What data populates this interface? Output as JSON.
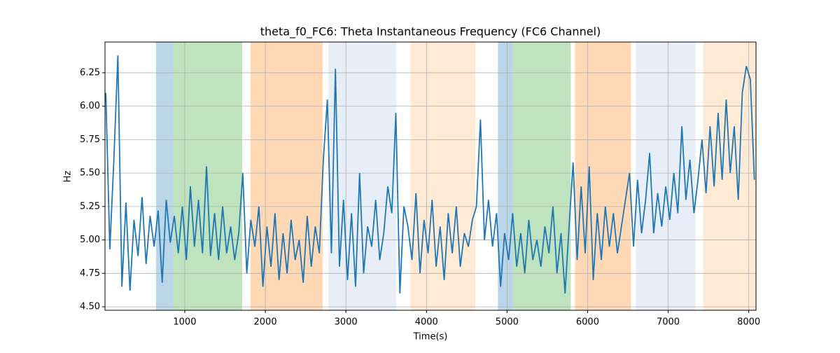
{
  "chart_data": {
    "type": "line",
    "title": "theta_f0_FC6: Theta Instantaneous Frequency (FC6 Channel)",
    "x_label": "Time(s)",
    "y_label": "Hz",
    "x": [
      20,
      70,
      120,
      170,
      220,
      270,
      320,
      370,
      420,
      470,
      520,
      570,
      620,
      670,
      720,
      770,
      820,
      870,
      920,
      970,
      1020,
      1070,
      1120,
      1170,
      1220,
      1270,
      1320,
      1370,
      1420,
      1470,
      1520,
      1570,
      1620,
      1670,
      1720,
      1770,
      1820,
      1870,
      1920,
      1970,
      2020,
      2070,
      2120,
      2170,
      2220,
      2270,
      2320,
      2370,
      2420,
      2470,
      2520,
      2570,
      2620,
      2670,
      2720,
      2770,
      2820,
      2870,
      2920,
      2970,
      3020,
      3070,
      3120,
      3170,
      3220,
      3270,
      3320,
      3370,
      3420,
      3470,
      3520,
      3570,
      3620,
      3670,
      3720,
      3770,
      3820,
      3870,
      3920,
      3970,
      4020,
      4070,
      4120,
      4170,
      4220,
      4270,
      4320,
      4370,
      4420,
      4470,
      4520,
      4570,
      4620,
      4670,
      4720,
      4770,
      4820,
      4870,
      4920,
      4970,
      5020,
      5070,
      5120,
      5170,
      5220,
      5270,
      5320,
      5370,
      5420,
      5470,
      5520,
      5570,
      5620,
      5670,
      5720,
      5770,
      5820,
      5870,
      5920,
      5970,
      6020,
      6070,
      6120,
      6170,
      6220,
      6270,
      6320,
      6370,
      6420,
      6470,
      6520,
      6570,
      6620,
      6670,
      6720,
      6770,
      6820,
      6870,
      6920,
      6970,
      7020,
      7070,
      7120,
      7170,
      7220,
      7270,
      7320,
      7370,
      7420,
      7470,
      7520,
      7570,
      7620,
      7670,
      7720,
      7770,
      7820,
      7870,
      7920,
      7970,
      8020,
      8070
    ],
    "series": [
      {
        "name": "theta_f0_FC6",
        "color": "#1f77b4",
        "values": [
          6.1,
          4.93,
          5.6,
          6.38,
          4.65,
          5.28,
          4.62,
          5.15,
          4.88,
          5.32,
          4.82,
          5.18,
          4.95,
          5.22,
          4.68,
          5.3,
          4.98,
          5.18,
          4.9,
          5.25,
          4.85,
          5.4,
          4.95,
          5.3,
          4.9,
          5.55,
          4.88,
          5.2,
          4.85,
          5.25,
          4.9,
          5.1,
          4.85,
          5.05,
          5.5,
          4.75,
          5.15,
          4.95,
          5.25,
          4.65,
          5.1,
          4.8,
          5.2,
          4.7,
          5.05,
          4.75,
          5.15,
          4.85,
          5.0,
          4.68,
          5.18,
          4.8,
          5.1,
          4.9,
          5.6,
          6.05,
          4.9,
          6.28,
          4.8,
          5.3,
          4.7,
          5.2,
          4.65,
          5.5,
          4.75,
          5.1,
          4.95,
          5.3,
          4.85,
          5.05,
          5.4,
          5.2,
          5.95,
          4.6,
          5.25,
          5.1,
          4.85,
          5.35,
          4.75,
          5.15,
          4.9,
          5.3,
          4.8,
          5.1,
          4.7,
          5.2,
          4.9,
          5.25,
          4.8,
          5.05,
          4.95,
          5.15,
          5.25,
          5.9,
          5.0,
          5.3,
          4.95,
          5.2,
          4.65,
          5.05,
          4.85,
          5.2,
          4.8,
          5.05,
          4.75,
          5.15,
          4.85,
          5.0,
          4.8,
          5.1,
          4.9,
          5.25,
          4.75,
          5.05,
          4.6,
          5.1,
          5.58,
          4.85,
          5.4,
          4.9,
          5.55,
          4.7,
          5.2,
          4.85,
          5.25,
          4.95,
          5.2,
          4.9,
          5.1,
          5.3,
          5.5,
          4.95,
          5.45,
          5.05,
          5.3,
          5.65,
          5.05,
          5.35,
          5.1,
          5.4,
          5.15,
          5.5,
          5.2,
          5.85,
          5.3,
          5.6,
          5.2,
          5.45,
          5.75,
          5.35,
          5.85,
          5.4,
          5.95,
          5.45,
          6.05,
          5.5,
          5.85,
          5.3,
          6.1,
          6.3,
          6.2,
          5.45
        ]
      }
    ],
    "spans": [
      {
        "start": 643,
        "end": 860,
        "color": "#1f77b4"
      },
      {
        "start": 860,
        "end": 1713,
        "color": "#2ca02c"
      },
      {
        "start": 1817,
        "end": 2713,
        "color": "#ff7f0e"
      },
      {
        "start": 2783,
        "end": 3626,
        "color": "#aec7e8"
      },
      {
        "start": 3800,
        "end": 4609,
        "color": "#ffbb78"
      },
      {
        "start": 4887,
        "end": 5070,
        "color": "#1f77b4"
      },
      {
        "start": 5070,
        "end": 5791,
        "color": "#2ca02c"
      },
      {
        "start": 5843,
        "end": 6539,
        "color": "#ff7f0e"
      },
      {
        "start": 6600,
        "end": 7339,
        "color": "#aec7e8"
      },
      {
        "start": 7435,
        "end": 8090,
        "color": "#ffbb78"
      }
    ],
    "xlim": [
      10,
      8090
    ],
    "ylim": [
      4.474,
      6.48
    ],
    "xticks": [
      1000,
      2000,
      3000,
      4000,
      5000,
      6000,
      7000,
      8000
    ],
    "yticks": [
      {
        "value": 4.5,
        "label": "4.50"
      },
      {
        "value": 4.75,
        "label": "4.75"
      },
      {
        "value": 5.0,
        "label": "5.00"
      },
      {
        "value": 5.25,
        "label": "5.25"
      },
      {
        "value": 5.5,
        "label": "5.50"
      },
      {
        "value": 5.75,
        "label": "5.75"
      },
      {
        "value": 6.0,
        "label": "6.00"
      },
      {
        "value": 6.25,
        "label": "6.25"
      }
    ],
    "grid": true
  }
}
